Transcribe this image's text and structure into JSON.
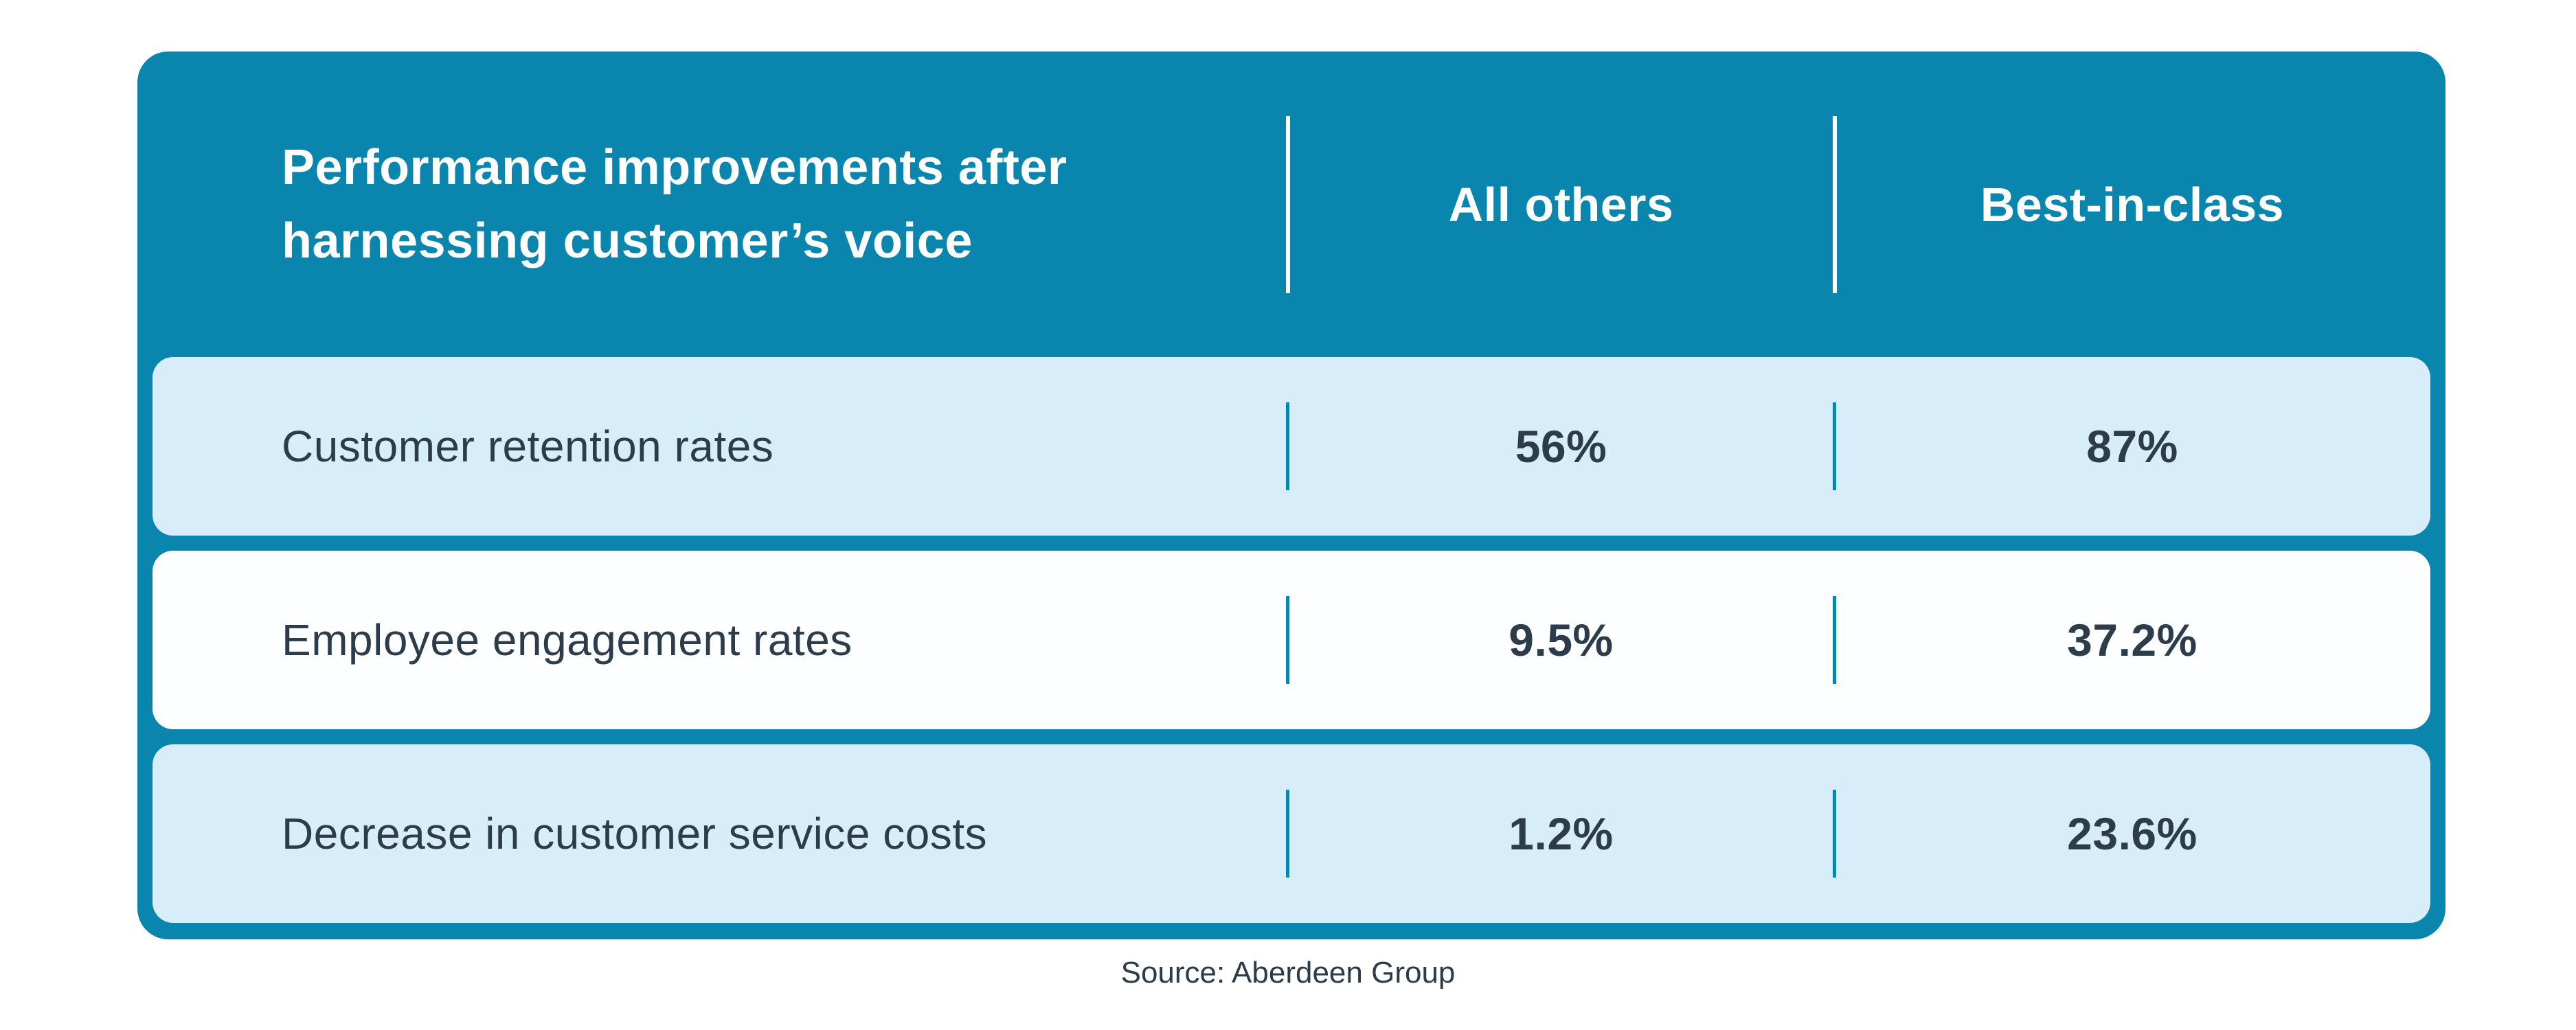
{
  "table": {
    "header": {
      "title": "Performance improvements after\nharnessing customer’s voice",
      "col_all_others": "All others",
      "col_best_in_class": "Best-in-class"
    },
    "rows": [
      {
        "label": "Customer retention rates",
        "all_others": "56%",
        "best_in_class": "87%"
      },
      {
        "label": "Employee engagement rates",
        "all_others": "9.5%",
        "best_in_class": "37.2%"
      },
      {
        "label": "Decrease in customer service costs",
        "all_others": "1.2%",
        "best_in_class": "23.6%"
      }
    ]
  },
  "source_caption": "Source: Aberdeen Group",
  "colors": {
    "teal": "#0a85ad",
    "light_row": "#d8edfa",
    "white_row": "#fdfeff",
    "text_dark": "#2d3c4b",
    "header_text": "#ffffff",
    "page_bg": "#ffffff"
  },
  "chart_data": {
    "type": "table",
    "title": "Performance improvements after harnessing customer’s voice",
    "columns": [
      "Performance improvements after harnessing customer’s voice",
      "All others",
      "Best-in-class"
    ],
    "categories": [
      "Customer retention rates",
      "Employee engagement rates",
      "Decrease in customer service costs"
    ],
    "series": [
      {
        "name": "All others",
        "values": [
          56,
          9.5,
          1.2
        ]
      },
      {
        "name": "Best-in-class",
        "values": [
          87,
          37.2,
          23.6
        ]
      }
    ],
    "rows": [
      [
        "Customer retention rates",
        "56%",
        "87%"
      ],
      [
        "Employee engagement rates",
        "9.5%",
        "37.2%"
      ],
      [
        "Decrease in customer service costs",
        "1.2%",
        "23.6%"
      ]
    ],
    "source": "Source: Aberdeen Group",
    "legend_position": "none",
    "grid": false
  }
}
